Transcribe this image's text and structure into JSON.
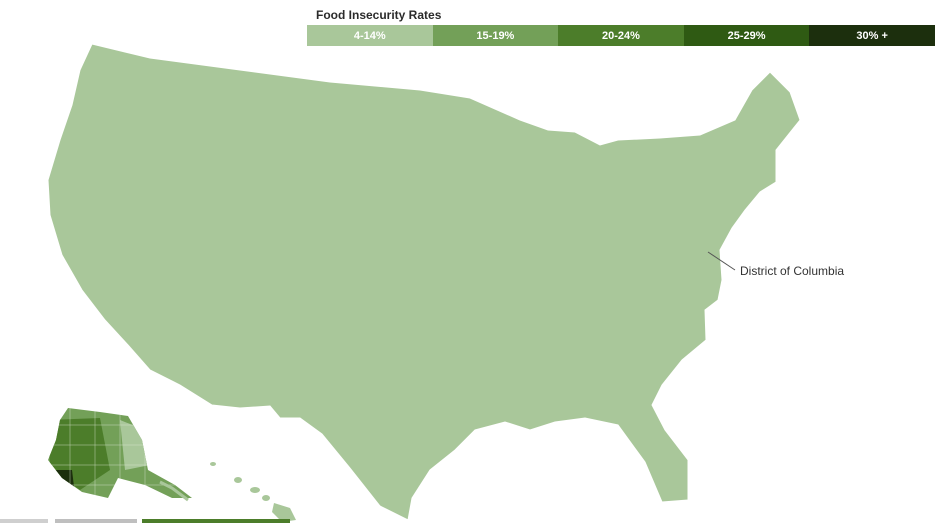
{
  "legend": {
    "title": "Food Insecurity Rates",
    "items": [
      {
        "label": "4-14%",
        "color": "#a9c79a"
      },
      {
        "label": "15-19%",
        "color": "#73a058"
      },
      {
        "label": "20-24%",
        "color": "#4c7d2a"
      },
      {
        "label": "25-29%",
        "color": "#2f5a13"
      },
      {
        "label": "30% +",
        "color": "#1c2f0d"
      }
    ]
  },
  "annotations": {
    "dc_label": "District of Columbia"
  },
  "colors": {
    "state_border": "#ffffff",
    "county_border": "#dfe9d8",
    "background": "#ffffff"
  }
}
